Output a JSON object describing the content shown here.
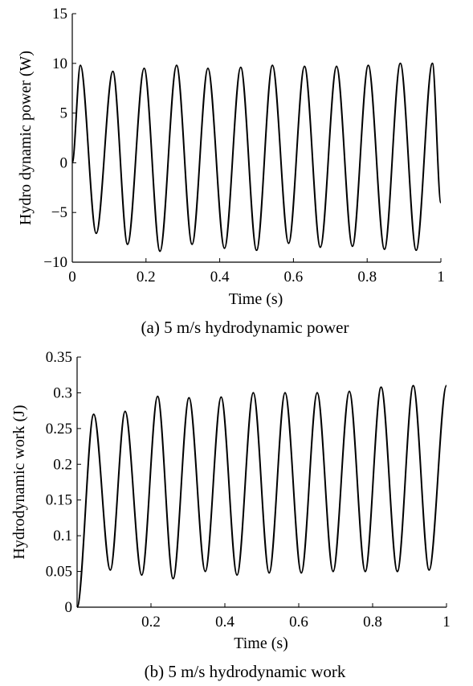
{
  "chart_data": [
    {
      "type": "line",
      "caption": "(a) 5 m/s hydrodynamic power",
      "xlabel": "Time (s)",
      "ylabel": "Hydro dynamic power (W)",
      "xlim": [
        0,
        1
      ],
      "ylim": [
        -10,
        15
      ],
      "xticks": [
        0,
        0.2,
        0.4,
        0.6,
        0.8,
        1
      ],
      "xtick_labels": [
        "0",
        "0.2",
        "0.4",
        "0.6",
        "0.8",
        "1"
      ],
      "yticks": [
        -10,
        -5,
        0,
        5,
        10,
        15
      ],
      "ytick_labels": [
        "−10",
        "−5",
        "0",
        "5",
        "10",
        "15"
      ],
      "grid": false,
      "series": [
        {
          "x": [
            0,
            0.022,
            0.065,
            0.11,
            0.15,
            0.195,
            0.238,
            0.283,
            0.325,
            0.368,
            0.413,
            0.457,
            0.5,
            0.543,
            0.587,
            0.63,
            0.673,
            0.717,
            0.76,
            0.803,
            0.847,
            0.89,
            0.933,
            0.977,
            1.0
          ],
          "y": [
            0,
            9.8,
            -7.1,
            9.2,
            -8.2,
            9.5,
            -8.9,
            9.8,
            -8.2,
            9.5,
            -8.6,
            9.6,
            -8.8,
            9.8,
            -8.1,
            9.7,
            -8.5,
            9.7,
            -8.4,
            9.8,
            -8.7,
            10.0,
            -8.8,
            10.0,
            -4.0
          ]
        }
      ]
    },
    {
      "type": "line",
      "caption": "(b) 5 m/s hydrodynamic work",
      "xlabel": "Time (s)",
      "ylabel": "Hydrodynamic work (J)",
      "xlim": [
        0,
        1
      ],
      "ylim": [
        0,
        0.35
      ],
      "xticks": [
        0.2,
        0.4,
        0.6,
        0.8,
        1
      ],
      "xtick_labels": [
        "0.2",
        "0.4",
        "0.6",
        "0.8",
        "1"
      ],
      "yticks": [
        0,
        0.05,
        0.1,
        0.15,
        0.2,
        0.25,
        0.3,
        0.35
      ],
      "ytick_labels": [
        "0",
        "0.05",
        "0.1",
        "0.15",
        "0.2",
        "0.25",
        "0.3",
        "0.35"
      ],
      "grid": false,
      "series": [
        {
          "x": [
            0,
            0.045,
            0.09,
            0.13,
            0.175,
            0.218,
            0.26,
            0.303,
            0.347,
            0.39,
            0.433,
            0.477,
            0.52,
            0.563,
            0.607,
            0.65,
            0.693,
            0.737,
            0.78,
            0.823,
            0.867,
            0.91,
            0.953,
            1.0
          ],
          "y": [
            0,
            0.27,
            0.052,
            0.274,
            0.045,
            0.295,
            0.04,
            0.293,
            0.05,
            0.294,
            0.045,
            0.3,
            0.048,
            0.3,
            0.048,
            0.3,
            0.05,
            0.302,
            0.05,
            0.308,
            0.05,
            0.31,
            0.052,
            0.31
          ]
        }
      ]
    }
  ]
}
